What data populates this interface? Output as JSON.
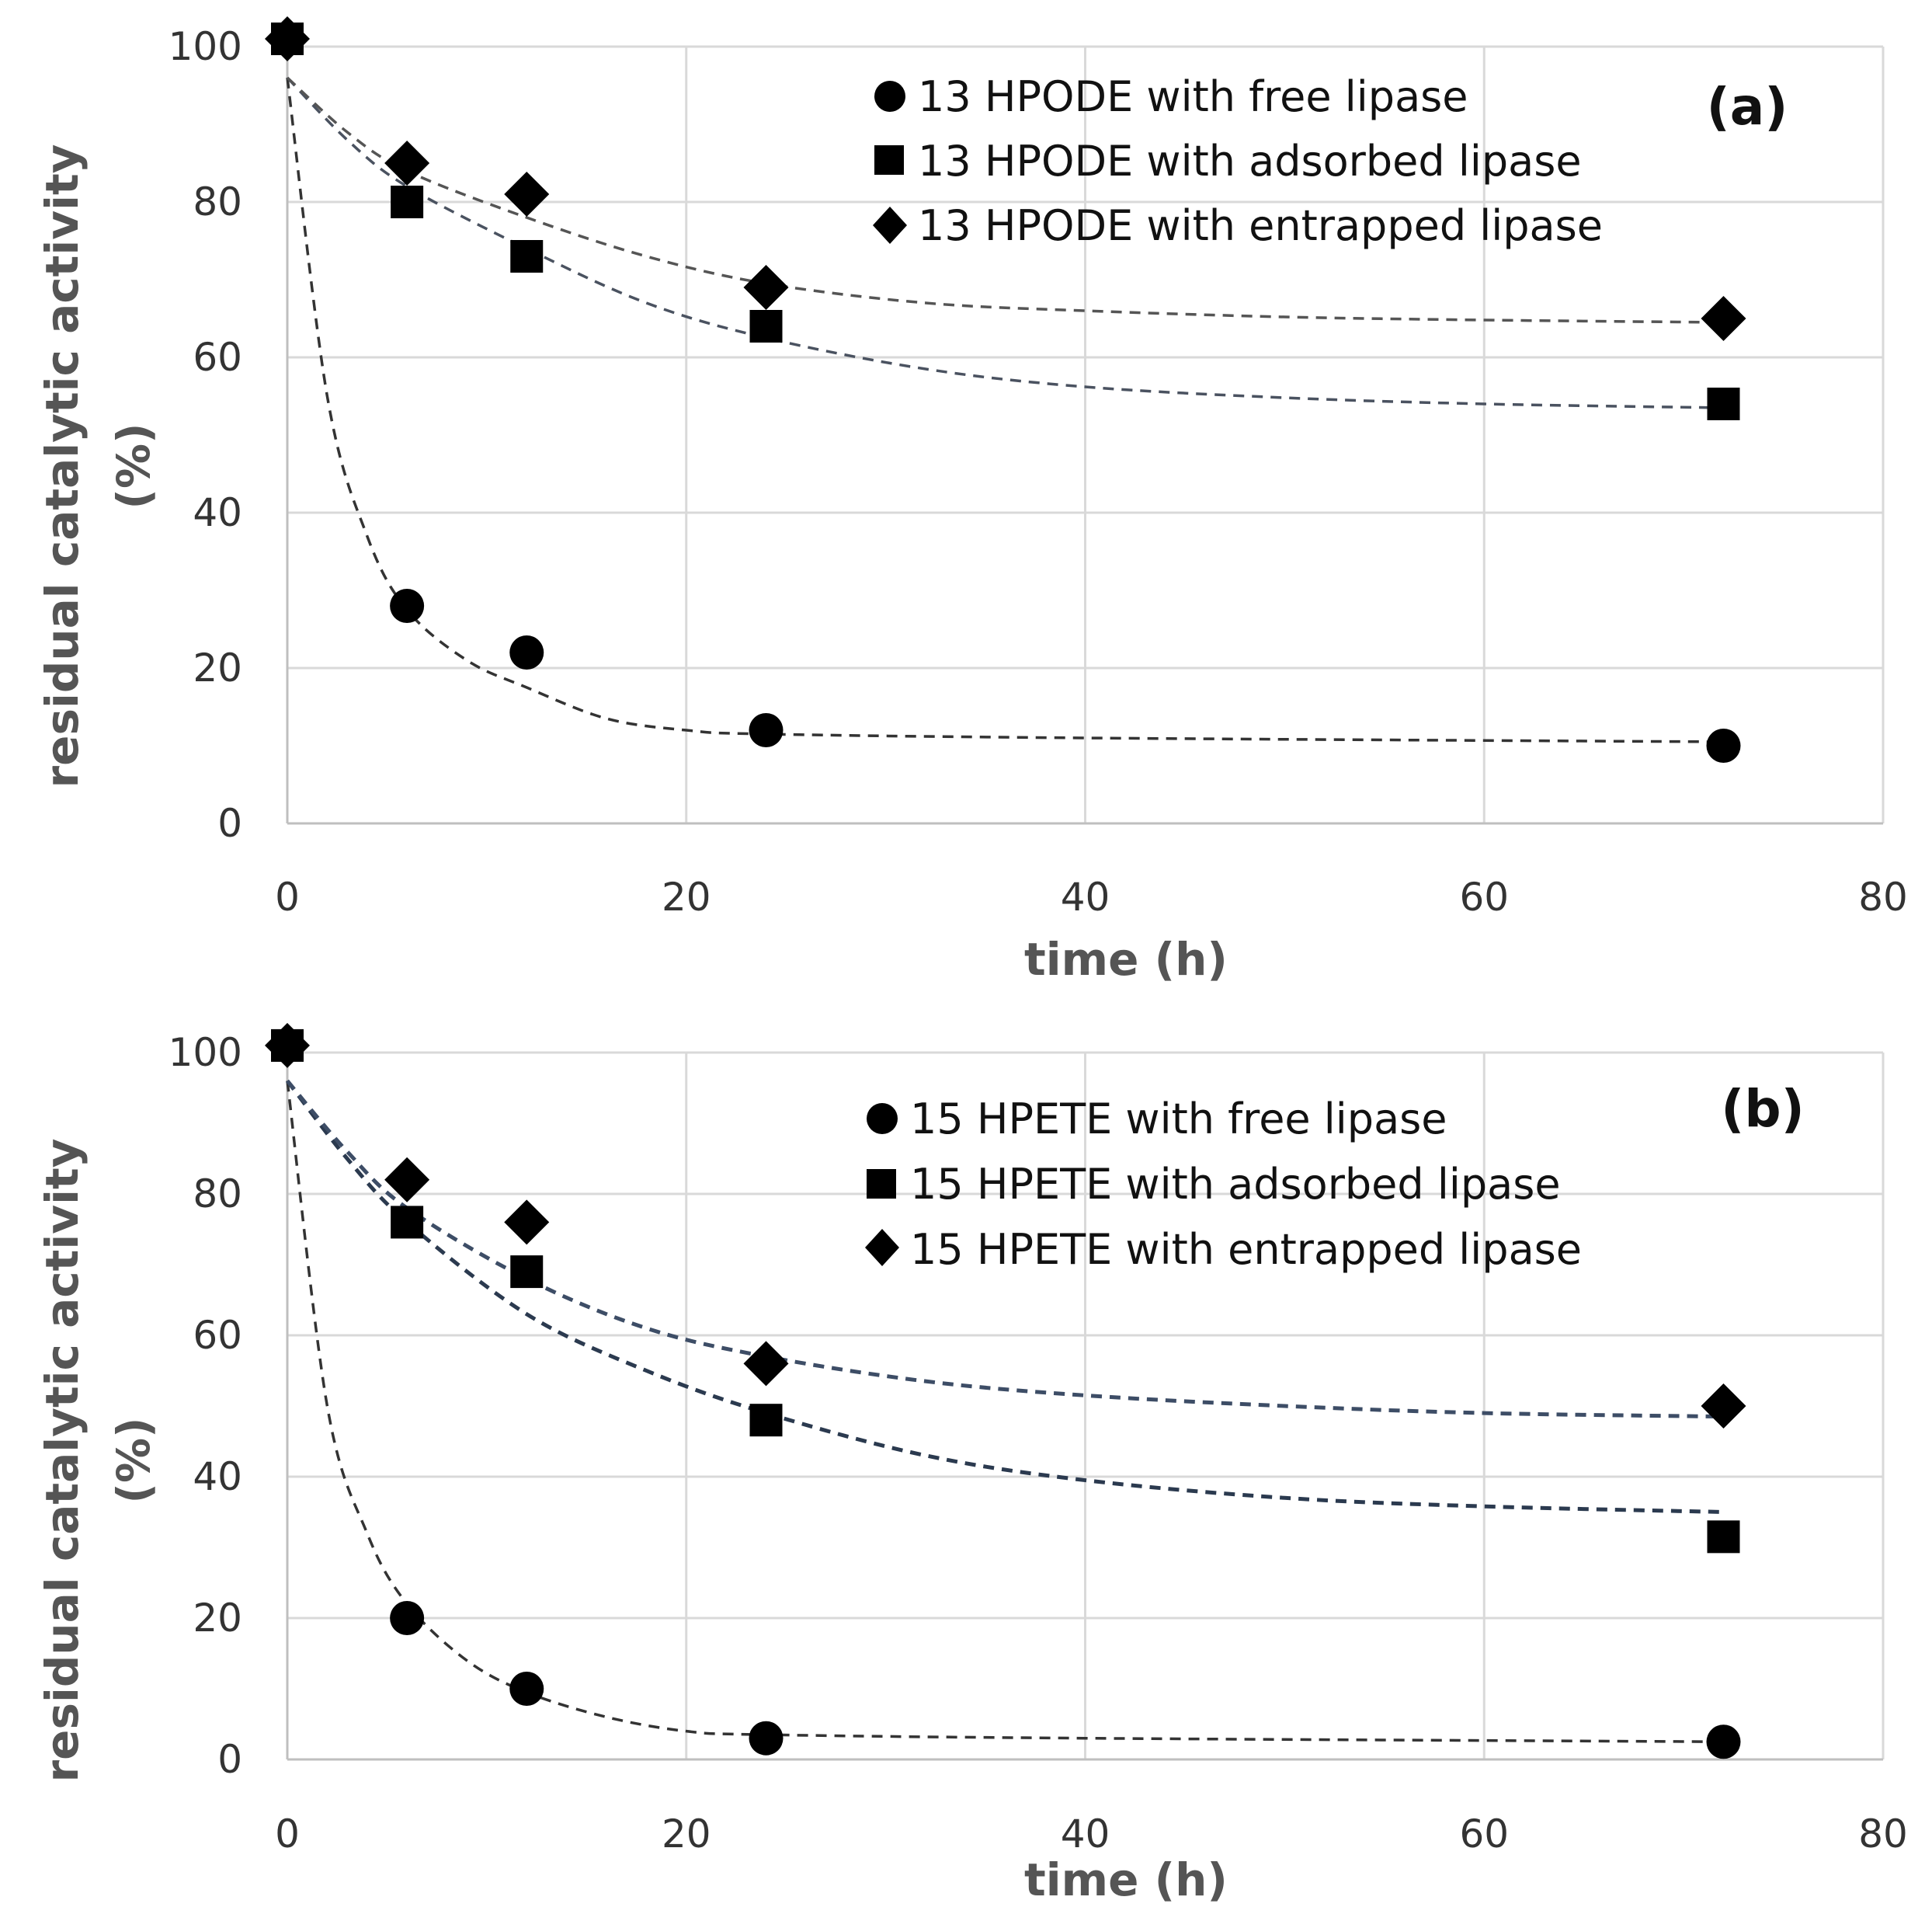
{
  "chart_data": [
    {
      "type": "scatter",
      "panel_label": "(a)",
      "xlabel": "time (h)",
      "ylabel_line1": "residual catalytic activity",
      "ylabel_line2": "(%)",
      "xlim": [
        0,
        80
      ],
      "ylim": [
        0,
        100
      ],
      "x_ticks": [
        0,
        20,
        40,
        60,
        80
      ],
      "y_ticks": [
        0,
        20,
        40,
        60,
        80,
        100
      ],
      "grid": true,
      "legend_position": "top-right",
      "series": [
        {
          "name": "13 HPODE with free lipase",
          "marker": "circle",
          "color": "#000000",
          "x": [
            0,
            6,
            12,
            24,
            72
          ],
          "y": [
            101,
            28,
            22,
            12,
            10
          ],
          "trend": [
            [
              0,
              96
            ],
            [
              2,
              55
            ],
            [
              4,
              37
            ],
            [
              6,
              27.5
            ],
            [
              9,
              21
            ],
            [
              12,
              17.5
            ],
            [
              16,
              13.5
            ],
            [
              20,
              12
            ],
            [
              24,
              11.5
            ],
            [
              40,
              11
            ],
            [
              72,
              10.5
            ]
          ],
          "trend_color": "#333333"
        },
        {
          "name": "13 HPODE with adsorbed lipase",
          "marker": "square",
          "color": "#000000",
          "x": [
            0,
            6,
            12,
            24,
            72
          ],
          "y": [
            101,
            80,
            73,
            64,
            54
          ],
          "trend": [
            [
              0,
              96
            ],
            [
              3,
              88
            ],
            [
              6,
              82
            ],
            [
              12,
              74
            ],
            [
              18,
              67
            ],
            [
              24,
              62.5
            ],
            [
              32,
              58.5
            ],
            [
              40,
              56.2
            ],
            [
              50,
              54.8
            ],
            [
              60,
              54
            ],
            [
              72,
              53.5
            ]
          ],
          "trend_color": "#4a5260"
        },
        {
          "name": "13 HPODE with entrapped lipase",
          "marker": "diamond",
          "color": "#000000",
          "x": [
            0,
            6,
            12,
            24,
            72
          ],
          "y": [
            101,
            85,
            81,
            69,
            65
          ],
          "trend": [
            [
              0,
              96
            ],
            [
              3,
              89
            ],
            [
              6,
              84
            ],
            [
              12,
              78
            ],
            [
              18,
              73
            ],
            [
              24,
              69.5
            ],
            [
              32,
              67
            ],
            [
              40,
              66
            ],
            [
              50,
              65.2
            ],
            [
              60,
              64.8
            ],
            [
              72,
              64.5
            ]
          ],
          "trend_color": "#555555"
        }
      ]
    },
    {
      "type": "scatter",
      "panel_label": "(b)",
      "xlabel": "time (h)",
      "ylabel_line1": "residual catalytic activity",
      "ylabel_line2": "(%)",
      "xlim": [
        0,
        80
      ],
      "ylim": [
        0,
        100
      ],
      "x_ticks": [
        0,
        20,
        40,
        60,
        80
      ],
      "y_ticks": [
        0,
        20,
        40,
        60,
        80,
        100
      ],
      "grid": true,
      "legend_position": "top-right",
      "series": [
        {
          "name": "15 HPETE with free lipase",
          "marker": "circle",
          "color": "#000000",
          "x": [
            0,
            6,
            12,
            24,
            72
          ],
          "y": [
            101,
            20,
            10,
            3,
            2.5
          ],
          "trend": [
            [
              0,
              96
            ],
            [
              2,
              50
            ],
            [
              4,
              32
            ],
            [
              6,
              22
            ],
            [
              9,
              14
            ],
            [
              12,
              9.5
            ],
            [
              16,
              6
            ],
            [
              20,
              4
            ],
            [
              24,
              3.5
            ],
            [
              40,
              3
            ],
            [
              72,
              2.5
            ]
          ],
          "trend_color": "#333333"
        },
        {
          "name": "15 HPETE with adsorbed lipase",
          "marker": "square",
          "color": "#000000",
          "x": [
            0,
            6,
            12,
            24,
            72
          ],
          "y": [
            101,
            76,
            69,
            48,
            31.5
          ],
          "trend": [
            [
              0,
              96
            ],
            [
              3,
              85
            ],
            [
              6,
              76
            ],
            [
              12,
              63
            ],
            [
              18,
              55
            ],
            [
              24,
              49
            ],
            [
              32,
              43
            ],
            [
              40,
              39.5
            ],
            [
              50,
              37
            ],
            [
              60,
              35.8
            ],
            [
              72,
              35
            ]
          ],
          "trend_color": "#2b3a4f"
        },
        {
          "name": "15 HPETE with entrapped lipase",
          "marker": "diamond",
          "color": "#000000",
          "x": [
            0,
            6,
            12,
            24,
            72
          ],
          "y": [
            101,
            82,
            76,
            56,
            50
          ],
          "trend": [
            [
              0,
              96
            ],
            [
              3,
              86
            ],
            [
              6,
              78
            ],
            [
              12,
              68
            ],
            [
              18,
              61
            ],
            [
              24,
              57
            ],
            [
              32,
              53.5
            ],
            [
              40,
              51.5
            ],
            [
              50,
              50
            ],
            [
              60,
              49
            ],
            [
              72,
              48.5
            ]
          ],
          "trend_color": "#3d4d66"
        }
      ]
    }
  ]
}
